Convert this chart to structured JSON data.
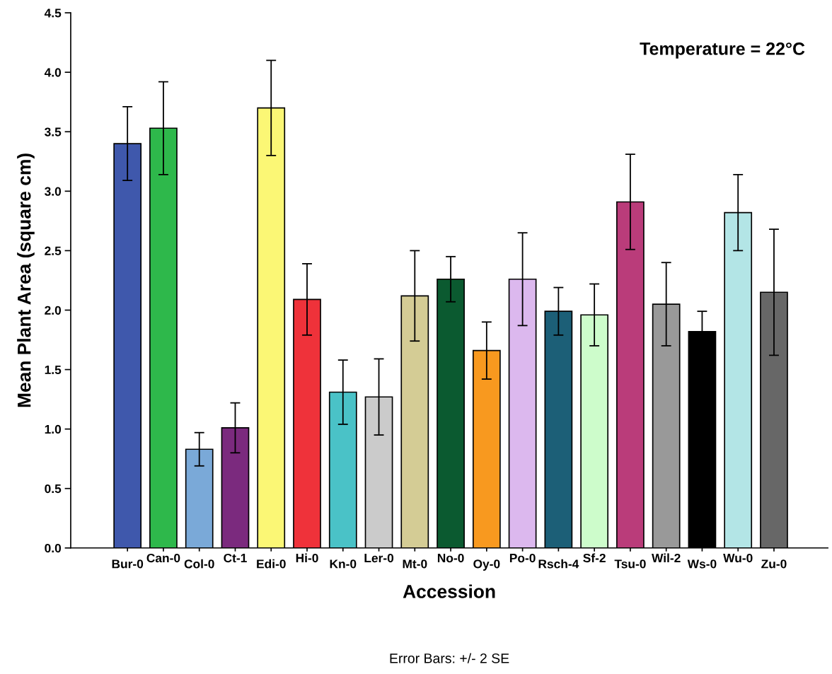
{
  "chart_data": {
    "type": "bar",
    "xlabel": "Accession",
    "ylabel": "Mean Plant Area (square cm)",
    "categories": [
      "Bur-0",
      "Can-0",
      "Col-0",
      "Ct-1",
      "Edi-0",
      "Hi-0",
      "Kn-0",
      "Ler-0",
      "Mt-0",
      "No-0",
      "Oy-0",
      "Po-0",
      "Rsch-4",
      "Sf-2",
      "Tsu-0",
      "Wil-2",
      "Ws-0",
      "Wu-0",
      "Zu-0"
    ],
    "values": [
      3.4,
      3.53,
      0.83,
      1.01,
      3.7,
      2.09,
      1.31,
      1.27,
      2.12,
      2.26,
      1.66,
      2.26,
      1.99,
      1.96,
      2.91,
      2.05,
      1.82,
      2.82,
      2.15
    ],
    "errors": [
      0.31,
      0.39,
      0.14,
      0.21,
      0.4,
      0.3,
      0.27,
      0.32,
      0.38,
      0.19,
      0.24,
      0.39,
      0.2,
      0.26,
      0.4,
      0.35,
      0.17,
      0.32,
      0.53
    ],
    "colors": [
      "#3f58ac",
      "#2eb84b",
      "#7aa9d8",
      "#7b2a7e",
      "#fbf775",
      "#ef323a",
      "#4ac2c7",
      "#cbcbcb",
      "#d4cc95",
      "#0b5a30",
      "#f8991f",
      "#dcb8ee",
      "#1c5f77",
      "#cdfccb",
      "#ba3c7a",
      "#999999",
      "#000000",
      "#b3e5e6",
      "#676767"
    ],
    "ylim": [
      0,
      4.5
    ],
    "yticks": [
      {
        "value": 0,
        "label": "0.0"
      },
      {
        "value": 0.5,
        "label": "0.5"
      },
      {
        "value": 1,
        "label": "1.0"
      },
      {
        "value": 1.5,
        "label": "1.5"
      },
      {
        "value": 2,
        "label": "2.0"
      },
      {
        "value": 2.5,
        "label": "2.5"
      },
      {
        "value": 3,
        "label": "3.0"
      },
      {
        "value": 3.5,
        "label": "3.5"
      },
      {
        "value": 4,
        "label": "4.0"
      },
      {
        "value": 4.5,
        "label": "4.5"
      }
    ],
    "grid": false,
    "annotations": [
      "Temperature = 22°C",
      "Error Bars: +/- 2 SE"
    ]
  }
}
